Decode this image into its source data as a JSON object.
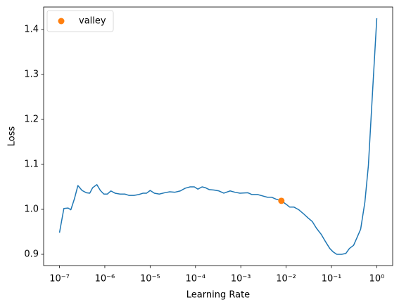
{
  "chart_data": {
    "type": "line",
    "xlabel": "Learning Rate",
    "ylabel": "Loss",
    "xscale": "log",
    "xlim": [
      4.47e-08,
      2.24
    ],
    "ylim": [
      0.875,
      1.45
    ],
    "xticks": [
      {
        "value": 1e-07,
        "label": "10⁻⁷"
      },
      {
        "value": 1e-06,
        "label": "10⁻⁶"
      },
      {
        "value": 1e-05,
        "label": "10⁻⁵"
      },
      {
        "value": 0.0001,
        "label": "10⁻⁴"
      },
      {
        "value": 0.001,
        "label": "10⁻³"
      },
      {
        "value": 0.01,
        "label": "10⁻²"
      },
      {
        "value": 0.1,
        "label": "10⁻¹"
      },
      {
        "value": 1,
        "label": "10⁰"
      }
    ],
    "yticks": [
      {
        "value": 0.9,
        "label": "0.9"
      },
      {
        "value": 1.0,
        "label": "1.0"
      },
      {
        "value": 1.1,
        "label": "1.1"
      },
      {
        "value": 1.2,
        "label": "1.2"
      },
      {
        "value": 1.3,
        "label": "1.3"
      },
      {
        "value": 1.4,
        "label": "1.4"
      }
    ],
    "legend": "upper left",
    "series": [
      {
        "color": "#1f77b4",
        "x": [
          1e-07,
          1.25e-07,
          1.55e-07,
          1.78e-07,
          2.13e-07,
          2.55e-07,
          3.15e-07,
          3.9e-07,
          4.66e-07,
          5.38e-07,
          6.67e-07,
          7.97e-07,
          9.52e-07,
          1.14e-06,
          1.36e-06,
          1.68e-06,
          2.16e-06,
          2.77e-06,
          3.43e-06,
          4.41e-06,
          5.65e-06,
          7e-06,
          8.37e-06,
          1e-05,
          1.24e-05,
          1.59e-05,
          2.11e-05,
          2.71e-05,
          3.48e-05,
          4.63e-05,
          5.94e-05,
          7.62e-05,
          9.44e-05,
          0.000113,
          0.00014,
          0.000167,
          0.0002,
          0.000256,
          0.000329,
          0.000422,
          0.000582,
          0.000746,
          0.000958,
          0.00142,
          0.00176,
          0.00234,
          0.003,
          0.00385,
          0.00476,
          0.0059,
          0.00785,
          0.0101,
          0.012,
          0.0149,
          0.0191,
          0.0237,
          0.0304,
          0.0377,
          0.0467,
          0.0598,
          0.0741,
          0.0918,
          0.11,
          0.131,
          0.168,
          0.208,
          0.249,
          0.308,
          0.369,
          0.441,
          0.546,
          0.652,
          0.807,
          1
        ],
        "values": [
          0.948,
          1.002,
          1.003,
          0.999,
          1.023,
          1.053,
          1.042,
          1.037,
          1.036,
          1.048,
          1.055,
          1.042,
          1.034,
          1.034,
          1.041,
          1.036,
          1.034,
          1.034,
          1.031,
          1.031,
          1.033,
          1.036,
          1.036,
          1.042,
          1.036,
          1.034,
          1.037,
          1.039,
          1.038,
          1.041,
          1.047,
          1.05,
          1.05,
          1.045,
          1.05,
          1.048,
          1.044,
          1.043,
          1.041,
          1.036,
          1.041,
          1.038,
          1.036,
          1.037,
          1.033,
          1.033,
          1.03,
          1.027,
          1.027,
          1.023,
          1.019,
          1.011,
          1.005,
          1.005,
          0.999,
          0.991,
          0.981,
          0.973,
          0.958,
          0.944,
          0.928,
          0.913,
          0.905,
          0.9,
          0.9,
          0.902,
          0.913,
          0.92,
          0.938,
          0.956,
          1.016,
          1.097,
          1.262,
          1.425
        ]
      },
      {
        "name": "valley",
        "color": "#ff7f0e",
        "marker": "o",
        "x": [
          0.00785
        ],
        "values": [
          1.019
        ]
      }
    ]
  }
}
